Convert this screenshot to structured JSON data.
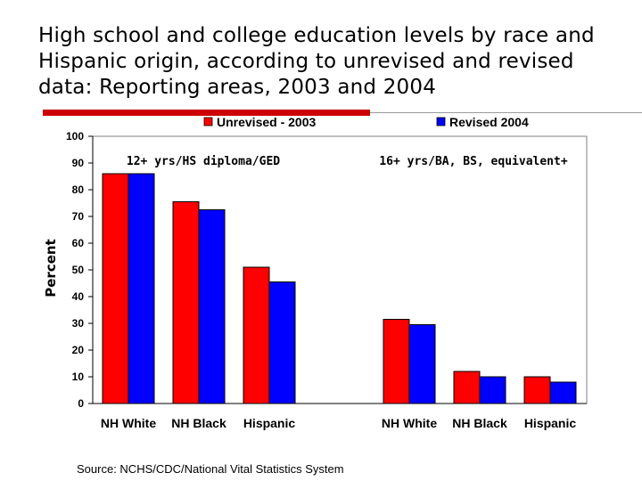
{
  "slide": {
    "title": "High school and college education levels by race and Hispanic origin, according to unrevised and revised data: Reporting areas, 2003 and 2004",
    "source": "Source: NCHS/CDC/National Vital Statistics System"
  },
  "chart_data": {
    "type": "bar",
    "title": "",
    "ylabel": "Percent",
    "ylim": [
      0,
      100
    ],
    "yticks": [
      0,
      10,
      20,
      30,
      40,
      50,
      60,
      70,
      80,
      90,
      100
    ],
    "legend_position": "top",
    "groups": [
      {
        "label": "12+ yrs/HS diploma/GED",
        "categories": [
          "NH White",
          "NH Black",
          "Hispanic"
        ],
        "series": [
          {
            "name": "Unrevised - 2003",
            "color": "#ff0000",
            "values": [
              86,
              75.5,
              51
            ]
          },
          {
            "name": "Revised 2004",
            "color": "#0000ff",
            "values": [
              86,
              72.5,
              45.5
            ]
          }
        ]
      },
      {
        "label": "16+ yrs/BA, BS, equivalent+",
        "categories": [
          "NH White",
          "NH Black",
          "Hispanic"
        ],
        "series": [
          {
            "name": "Unrevised - 2003",
            "color": "#ff0000",
            "values": [
              31.5,
              12,
              10
            ]
          },
          {
            "name": "Revised 2004",
            "color": "#0000ff",
            "values": [
              29.5,
              10,
              8
            ]
          }
        ]
      }
    ],
    "legend": [
      {
        "name": "Unrevised - 2003",
        "color": "#ff0000"
      },
      {
        "name": "Revised 2004",
        "color": "#0000ff"
      }
    ]
  }
}
